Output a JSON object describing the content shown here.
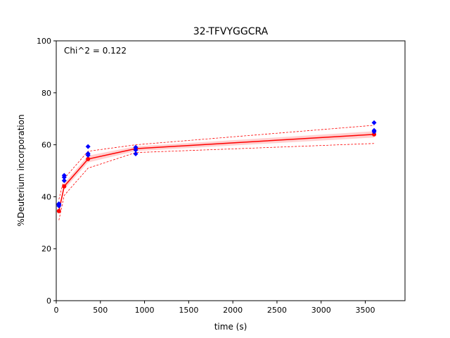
{
  "chart_data": {
    "type": "scatter",
    "title": "32-TFVYGGCRA",
    "xlabel": "time (s)",
    "ylabel": "%Deuterium incorporation",
    "xlim": [
      0,
      3950
    ],
    "ylim": [
      0,
      100
    ],
    "xticks": [
      0,
      500,
      1000,
      1500,
      2000,
      2500,
      3000,
      3500
    ],
    "yticks": [
      0,
      20,
      40,
      60,
      80,
      100
    ],
    "grid": false,
    "annotation": "Chi^2 = 0.122",
    "colors": {
      "observed": "#0000ff",
      "fit": "#ff0000",
      "band": "#ffb0b0"
    },
    "observed": {
      "x": [
        30,
        30,
        30,
        90,
        90,
        90,
        360,
        360,
        360,
        900,
        900,
        900,
        3600,
        3600,
        3600
      ],
      "y": [
        36.5,
        37.0,
        37.3,
        46.2,
        47.5,
        48.2,
        56.0,
        56.6,
        59.3,
        56.5,
        58.0,
        59.0,
        65.0,
        65.5,
        68.5
      ]
    },
    "fit": {
      "x": [
        30,
        90,
        360,
        900,
        3600
      ],
      "y": [
        34.5,
        44.0,
        54.5,
        58.5,
        64.0
      ]
    },
    "fit_band": {
      "x": [
        30,
        90,
        360,
        900,
        3600
      ],
      "upper": [
        36.0,
        45.2,
        55.8,
        59.4,
        65.2
      ],
      "lower": [
        33.0,
        42.8,
        53.2,
        57.6,
        62.8
      ]
    },
    "fit_bounds": {
      "x": [
        30,
        90,
        360,
        900,
        3600
      ],
      "upper": [
        39.0,
        47.0,
        57.5,
        60.0,
        67.5
      ],
      "lower": [
        31.0,
        40.5,
        51.0,
        57.0,
        60.5
      ]
    }
  }
}
